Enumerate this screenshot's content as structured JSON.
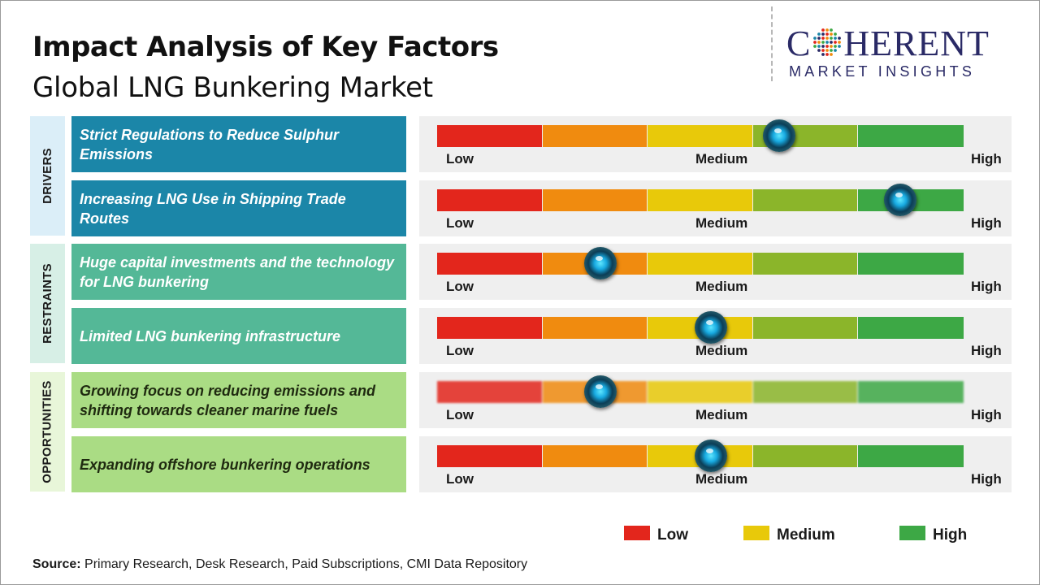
{
  "header": {
    "title": "Impact Analysis of Key Factors",
    "subtitle": "Global LNG Bunkering Market"
  },
  "logo": {
    "name_left": "C",
    "name_right": "HERENT",
    "tagline": "MARKET INSIGHTS"
  },
  "colors": {
    "scale": [
      "#e3261c",
      "#f08b0f",
      "#e8c90a",
      "#8bb52a",
      "#3da845"
    ],
    "drivers": "#1b86a8",
    "restraints": "#54b897",
    "opportunities": "#aadc84",
    "legend_low": "#e3261c",
    "legend_medium": "#e8c90a",
    "legend_high": "#3da845"
  },
  "categories": {
    "drivers": "DRIVERS",
    "restraints": "RESTRAINTS",
    "opportunities": "OPPORTUNITIES"
  },
  "scale_labels": {
    "low": "Low",
    "medium": "Medium",
    "high": "High"
  },
  "chart_data": {
    "type": "table",
    "title": "Impact Analysis of Key Factors",
    "subtitle": "Global LNG Bunkering Market",
    "scale": [
      "Low",
      "Medium",
      "High"
    ],
    "value_range": [
      0,
      1
    ],
    "factors": [
      {
        "category": "DRIVERS",
        "label": "Strict Regulations to Reduce Sulphur Emissions",
        "impact": 0.65
      },
      {
        "category": "DRIVERS",
        "label": "Increasing LNG Use in Shipping Trade Routes",
        "impact": 0.88
      },
      {
        "category": "RESTRAINTS",
        "label": "Huge capital investments and the technology for LNG bunkering",
        "impact": 0.31
      },
      {
        "category": "RESTRAINTS",
        "label": "Limited LNG bunkering infrastructure",
        "impact": 0.52
      },
      {
        "category": "OPPORTUNITIES",
        "label": "Growing focus on reducing emissions and shifting towards cleaner marine fuels",
        "impact": 0.31
      },
      {
        "category": "OPPORTUNITIES",
        "label": "Expanding offshore bunkering operations",
        "impact": 0.52
      }
    ]
  },
  "legend": [
    {
      "label": "Low",
      "color": "#e3261c"
    },
    {
      "label": "Medium",
      "color": "#e8c90a"
    },
    {
      "label": "High",
      "color": "#3da845"
    }
  ],
  "source": {
    "label": "Source:",
    "text": " Primary Research, Desk Research, Paid Subscriptions, CMI Data Repository"
  }
}
